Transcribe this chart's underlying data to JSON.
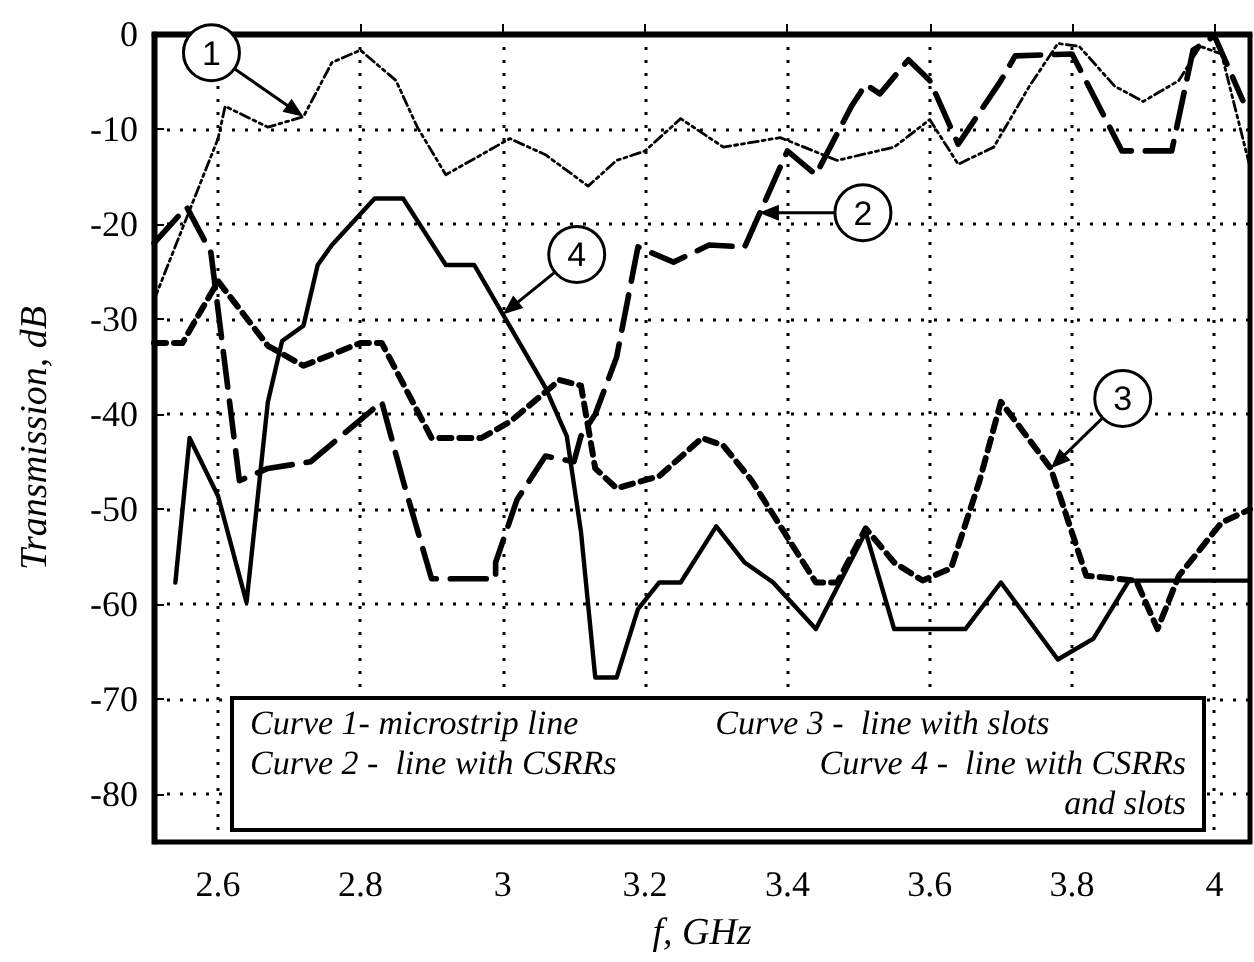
{
  "chart_data": {
    "type": "line",
    "xlabel": "f, GHz",
    "ylabel": "Transmission, dB",
    "xlim": [
      2.51,
      4.05
    ],
    "ylim": [
      -85,
      0
    ],
    "xticks": [
      2.6,
      2.8,
      3,
      3.2,
      3.4,
      3.6,
      3.8,
      4
    ],
    "yticks": [
      0,
      -10,
      -20,
      -30,
      -40,
      -50,
      -60,
      -70,
      -80
    ],
    "grid": true,
    "marker": "none",
    "series": [
      {
        "color": "#000000",
        "line_style": "dotted",
        "x": [
          2.51,
          2.6,
          2.61,
          2.67,
          2.72,
          2.76,
          2.8,
          2.85,
          2.88,
          2.92,
          2.97,
          3.01,
          3.06,
          3.12,
          3.16,
          3.2,
          3.25,
          3.31,
          3.39,
          3.47,
          3.55,
          3.6,
          3.64,
          3.69,
          3.74,
          3.78,
          3.81,
          3.86,
          3.9,
          3.95,
          3.98,
          4.01,
          4.05
        ],
        "values": [
          -28,
          -11,
          -7.6,
          -9.8,
          -8.7,
          -3,
          -1.7,
          -4.9,
          -9.8,
          -14.8,
          -12.7,
          -11,
          -12.7,
          -16,
          -13.3,
          -12.3,
          -8.9,
          -11.9,
          -10.9,
          -13.3,
          -11.9,
          -9,
          -13.7,
          -11.9,
          -5.5,
          -1,
          -1.3,
          -5.5,
          -7.1,
          -4.9,
          -1.3,
          -2.1,
          -14
        ]
      },
      {
        "color": "#000000",
        "line_style": "dashed",
        "x": [
          2.51,
          2.556,
          2.59,
          2.63,
          2.67,
          2.73,
          2.83,
          2.86,
          2.9,
          2.99,
          2.99,
          3.02,
          3.06,
          3.1,
          3.11,
          3.13,
          3.16,
          3.19,
          3.24,
          3.29,
          3.34,
          3.4,
          3.44,
          3.49,
          3.51,
          3.53,
          3.57,
          3.6,
          3.64,
          3.7,
          3.72,
          3.8,
          3.87,
          3.94,
          3.97,
          4.0,
          4.04
        ],
        "values": [
          -22,
          -18.2,
          -23,
          -47,
          -45.7,
          -45,
          -38.7,
          -47,
          -57.3,
          -57.3,
          -55.6,
          -49,
          -44.4,
          -45,
          -42.3,
          -40,
          -34,
          -22.4,
          -24,
          -22.2,
          -22.4,
          -12.3,
          -14.8,
          -7.6,
          -5.3,
          -6.3,
          -2.7,
          -4.9,
          -11.6,
          -4.9,
          -2.3,
          -2.1,
          -12.3,
          -12.3,
          -1.7,
          -0.2,
          -7
        ]
      },
      {
        "color": "#000000",
        "line_style": "dashed",
        "x": [
          2.51,
          2.55,
          2.6,
          2.67,
          2.72,
          2.8,
          2.83,
          2.9,
          2.97,
          3.01,
          3.08,
          3.11,
          3.13,
          3.16,
          3.22,
          3.28,
          3.31,
          3.35,
          3.44,
          3.47,
          3.51,
          3.55,
          3.59,
          3.63,
          3.67,
          3.7,
          3.77,
          3.82,
          3.89,
          3.92,
          3.95,
          4.01,
          4.05
        ],
        "values": [
          -32.5,
          -32.5,
          -26,
          -32.8,
          -34.9,
          -32.5,
          -32.5,
          -42.5,
          -42.5,
          -40.8,
          -36.4,
          -37,
          -45.7,
          -47.8,
          -46.5,
          -42.5,
          -43.3,
          -47,
          -57.7,
          -57.7,
          -52,
          -55.6,
          -57.5,
          -56.2,
          -47,
          -38.7,
          -45.7,
          -57,
          -57.5,
          -62.6,
          -57,
          -51.4,
          -50
        ]
      },
      {
        "color": "#000000",
        "line_style": "solid",
        "x": [
          2.54,
          2.56,
          2.6,
          2.64,
          2.67,
          2.69,
          2.72,
          2.74,
          2.76,
          2.82,
          2.86,
          2.92,
          2.96,
          3.06,
          3.09,
          3.11,
          3.13,
          3.16,
          3.19,
          3.22,
          3.25,
          3.3,
          3.34,
          3.38,
          3.44,
          3.51,
          3.55,
          3.65,
          3.7,
          3.78,
          3.83,
          3.88,
          4.05
        ],
        "values": [
          -57.7,
          -42.5,
          -48.6,
          -59.8,
          -38.7,
          -32.3,
          -30.7,
          -24.3,
          -22.2,
          -17.3,
          -17.3,
          -24.3,
          -24.3,
          -37.2,
          -42.3,
          -52.4,
          -67.7,
          -67.7,
          -60.5,
          -57.7,
          -57.7,
          -51.8,
          -55.6,
          -57.7,
          -62.6,
          -52.4,
          -62.6,
          -62.6,
          -57.7,
          -65.8,
          -63.6,
          -57.5,
          -57.5
        ]
      }
    ],
    "annotations": [
      {
        "text": "1",
        "x": 2.72,
        "y": -8.7
      },
      {
        "text": "2",
        "x": 3.36,
        "y": -18.8
      },
      {
        "text": "3",
        "x": 3.77,
        "y": -45.7
      },
      {
        "text": "4",
        "x": 3,
        "y": -29.5
      },
      "Curve 1- microstrip line",
      "Curve 2 -  line with CSRRs",
      "Curve 3 -  line with slots",
      "Curve 4 -  line with CSRRs and slots"
    ]
  }
}
